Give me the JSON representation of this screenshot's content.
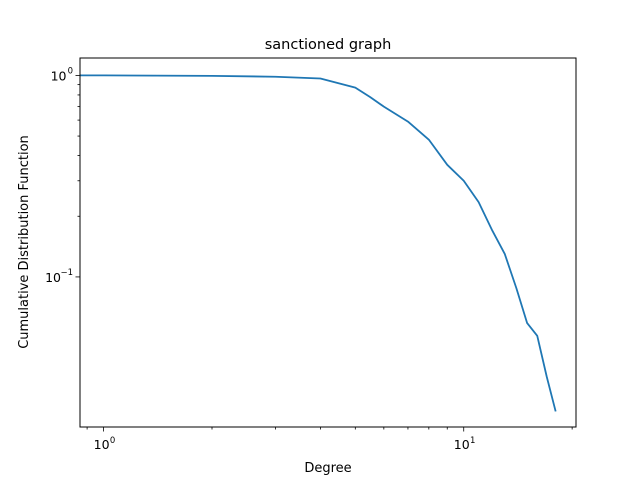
{
  "chart_data": {
    "type": "line",
    "title": "sanctioned graph",
    "xlabel": "Degree",
    "ylabel": "Cumulative Distribution Function",
    "xscale": "log",
    "yscale": "log",
    "xlim": [
      0.86,
      20.5
    ],
    "ylim": [
      0.018,
      1.22
    ],
    "grid": false,
    "x_ticks": [
      {
        "value": 1,
        "label": "10",
        "exp": "0"
      },
      {
        "value": 10,
        "label": "10",
        "exp": "1"
      }
    ],
    "y_ticks": [
      {
        "value": 0.1,
        "label": "10",
        "exp": "−1"
      },
      {
        "value": 1,
        "label": "10",
        "exp": "0"
      }
    ],
    "series": [
      {
        "color": "#1f77b4",
        "x": [
          0.86,
          1,
          2,
          3,
          4,
          5,
          5.5,
          6,
          7,
          8,
          9,
          10,
          11,
          12,
          13,
          14,
          15,
          16,
          17,
          18
        ],
        "y": [
          1.0,
          1.0,
          0.995,
          0.985,
          0.965,
          0.87,
          0.78,
          0.7,
          0.59,
          0.48,
          0.36,
          0.3,
          0.235,
          0.17,
          0.13,
          0.088,
          0.059,
          0.051,
          0.032,
          0.0215
        ]
      }
    ]
  }
}
